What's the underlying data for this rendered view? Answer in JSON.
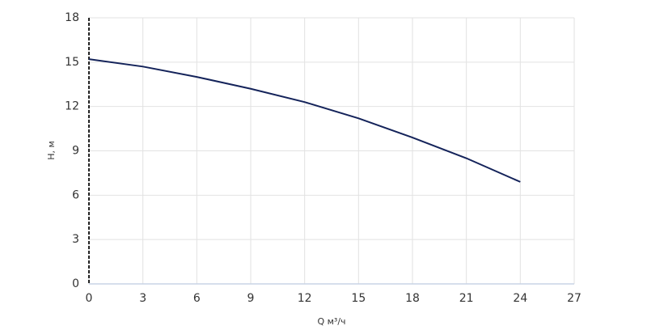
{
  "chart_data": {
    "type": "line",
    "x_label": "Q м³/ч",
    "y_label": "H, м",
    "x": [
      0,
      3,
      6,
      9,
      12,
      15,
      18,
      21,
      24
    ],
    "values": [
      15.2,
      14.7,
      14.0,
      13.2,
      12.3,
      11.2,
      9.9,
      8.5,
      6.9
    ],
    "color": "#14235a",
    "xlim": [
      0,
      27
    ],
    "xticks": [
      0,
      3,
      6,
      9,
      12,
      15,
      18,
      21,
      24,
      27
    ],
    "ylim": [
      0,
      18
    ],
    "yticks": [
      0,
      3,
      6,
      9,
      12,
      15,
      18
    ],
    "grid": true
  }
}
